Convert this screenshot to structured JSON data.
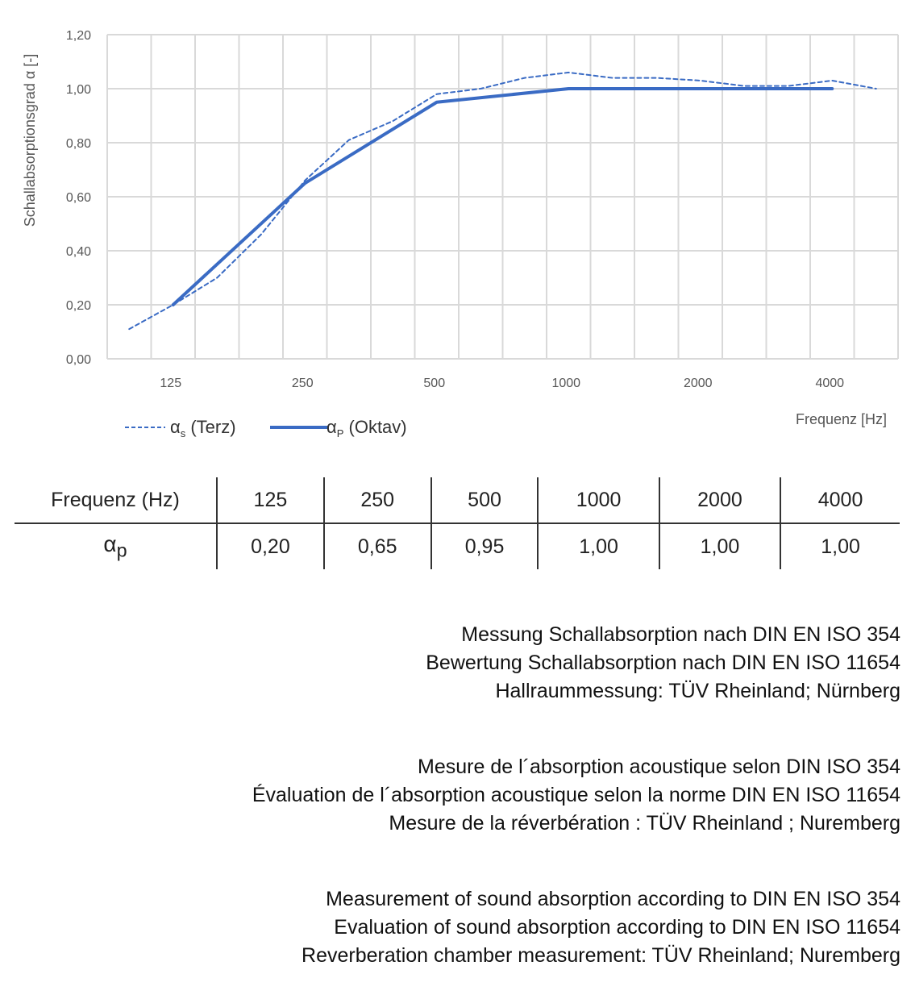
{
  "chart_data": {
    "type": "line",
    "ylabel": "Schallabsorptionsgrad α [-]",
    "xlabel": "Frequenz [Hz]",
    "ylim": [
      0,
      1.2
    ],
    "yticks": [
      "0,00",
      "0,20",
      "0,40",
      "0,60",
      "0,80",
      "1,00",
      "1,20"
    ],
    "categories": [
      "100",
      "125",
      "160",
      "200",
      "250",
      "315",
      "400",
      "500",
      "630",
      "800",
      "1000",
      "1250",
      "1600",
      "2000",
      "2500",
      "3150",
      "4000",
      "5000"
    ],
    "xtick_labels": [
      "125",
      "250",
      "500",
      "1000",
      "2000",
      "4000"
    ],
    "grid": true,
    "legend_position": "bottom-left",
    "series": [
      {
        "name": "αs (Terz)",
        "legend_main": "α",
        "legend_sub": "s",
        "legend_rest": " (Terz)",
        "style": "dashed",
        "color": "#3A6BC4",
        "values": [
          0.11,
          0.2,
          0.3,
          0.46,
          0.66,
          0.81,
          0.88,
          0.98,
          1.0,
          1.04,
          1.06,
          1.04,
          1.04,
          1.03,
          1.01,
          1.01,
          1.03,
          1.0
        ]
      },
      {
        "name": "αP (Oktav)",
        "legend_main": "α",
        "legend_sub": "P",
        "legend_rest": " (Oktav)",
        "style": "solid",
        "color": "#3A6BC4",
        "x": [
          "125",
          "250",
          "500",
          "1000",
          "2000",
          "4000"
        ],
        "values": [
          0.2,
          0.65,
          0.95,
          1.0,
          1.0,
          1.0
        ]
      }
    ]
  },
  "table": {
    "header": [
      "Frequenz (Hz)",
      "125",
      "250",
      "500",
      "1000",
      "2000",
      "4000"
    ],
    "row_label": "αp",
    "row": [
      "0,20",
      "0,65",
      "0,95",
      "1,00",
      "1,00",
      "1,00"
    ]
  },
  "notes": [
    [
      "Messung Schallabsorption nach DIN EN ISO 354",
      "Bewertung Schallabsorption nach DIN EN ISO 11654",
      "Hallraummessung: TÜV Rheinland; Nürnberg"
    ],
    [
      "Mesure de l´absorption acoustique selon DIN ISO 354",
      "Évaluation de l´absorption acoustique selon la norme DIN EN ISO 11654",
      "Mesure de la réverbération : TÜV Rheinland ; Nuremberg"
    ],
    [
      "Measurement of sound absorption according to DIN EN ISO 354",
      "Evaluation of sound absorption according to DIN EN ISO 11654",
      "Reverberation chamber measurement: TÜV Rheinland; Nuremberg"
    ]
  ]
}
